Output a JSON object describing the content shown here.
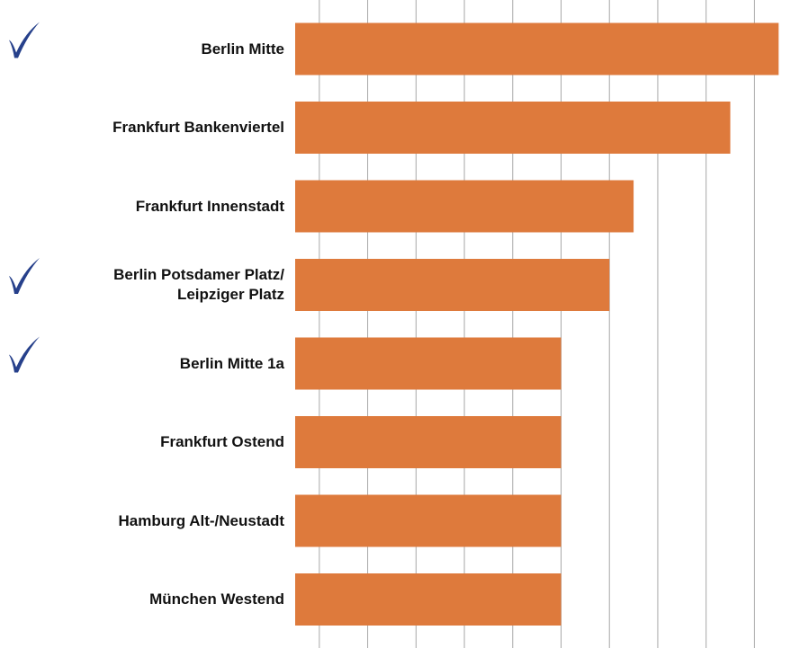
{
  "chart_data": {
    "type": "bar",
    "orientation": "horizontal",
    "categories": [
      "Berlin Mitte",
      "Frankfurt Bankenviertel",
      "Frankfurt Innenstadt",
      "Berlin Potsdamer Platz/\nLeipziger Platz",
      "Berlin Mitte 1a",
      "Frankfurt Ostend",
      "Hamburg Alt-/Neustadt",
      "München Westend"
    ],
    "values": [
      10,
      9,
      7,
      6.5,
      5.5,
      5.5,
      5.5,
      5.5
    ],
    "checked": [
      true,
      false,
      false,
      true,
      true,
      false,
      false,
      false
    ],
    "color": "#de7a3c",
    "check_color": "#26408b",
    "xlim": [
      0,
      10.2
    ],
    "xticks": [
      0.5,
      1.5,
      2.5,
      3.5,
      4.5,
      5.5,
      6.5,
      7.5,
      8.5,
      9.5
    ],
    "grid": true
  }
}
